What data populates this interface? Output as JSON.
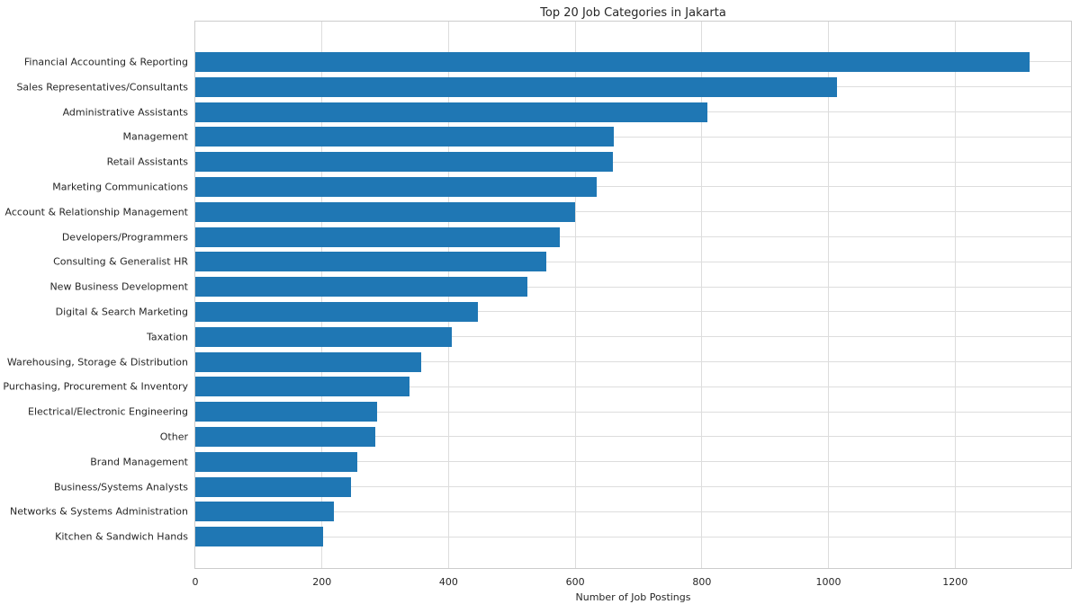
{
  "chart_data": {
    "type": "bar",
    "orientation": "horizontal",
    "title": "Top 20 Job Categories in Jakarta",
    "xlabel": "Number of Job Postings",
    "ylabel": "",
    "categories": [
      "Financial Accounting & Reporting",
      "Sales Representatives/Consultants",
      "Administrative Assistants",
      "Management",
      "Retail Assistants",
      "Marketing Communications",
      "Account & Relationship Management",
      "Developers/Programmers",
      "Consulting & Generalist HR",
      "New Business Development",
      "Digital & Search Marketing",
      "Taxation",
      "Warehousing, Storage & Distribution",
      "Purchasing, Procurement & Inventory",
      "Electrical/Electronic Engineering",
      "Other",
      "Brand Management",
      "Business/Systems Analysts",
      "Networks & Systems Administration",
      "Kitchen & Sandwich Hands"
    ],
    "values": [
      1317,
      1014,
      809,
      661,
      659,
      634,
      600,
      576,
      555,
      525,
      446,
      405,
      357,
      338,
      287,
      284,
      256,
      246,
      219,
      202
    ],
    "xlim": [
      0,
      1383
    ],
    "xticks": [
      0,
      200,
      400,
      600,
      800,
      1000,
      1200
    ],
    "grid": true,
    "legend": "none",
    "bar_color": "#1f77b4",
    "grid_color": "#dddddd",
    "spine_color": "#cccccc",
    "text_color": "#262626"
  }
}
